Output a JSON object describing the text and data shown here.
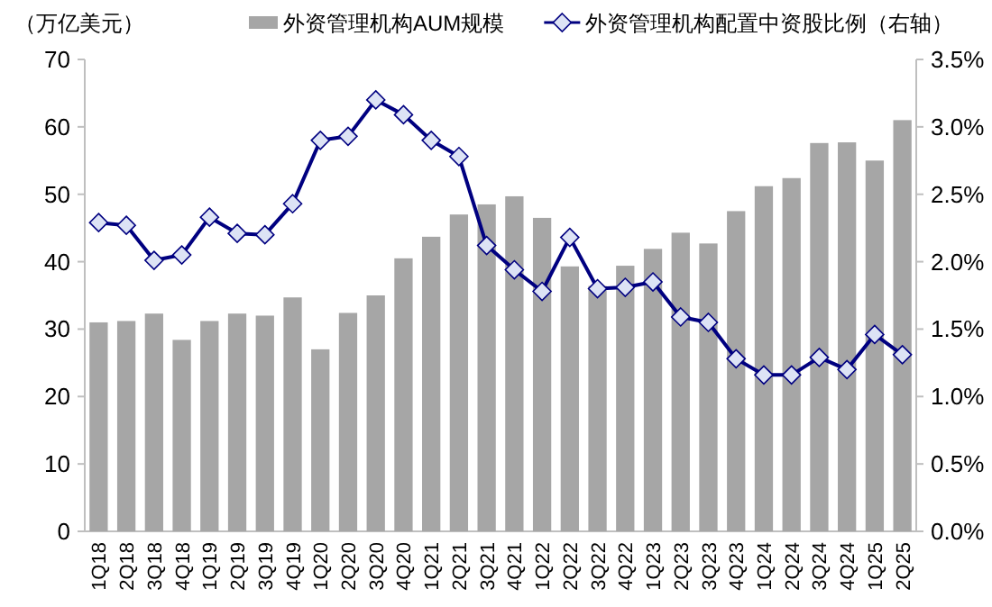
{
  "chart_data": {
    "type": "bar",
    "ylabel": "（万亿美元）",
    "categories": [
      "1Q18",
      "2Q18",
      "3Q18",
      "4Q18",
      "1Q19",
      "2Q19",
      "3Q19",
      "4Q19",
      "1Q20",
      "2Q20",
      "3Q20",
      "4Q20",
      "1Q21",
      "2Q21",
      "3Q21",
      "4Q21",
      "1Q22",
      "2Q22",
      "3Q22",
      "4Q22",
      "1Q23",
      "2Q23",
      "3Q23",
      "4Q23",
      "1Q24",
      "2Q24",
      "3Q24",
      "4Q24",
      "1Q25",
      "2Q25"
    ],
    "series": [
      {
        "name": "外资管理机构AUM规模",
        "color": "#a6a6a6",
        "values": [
          31.0,
          31.2,
          32.3,
          28.4,
          31.2,
          32.3,
          32.0,
          34.7,
          27.0,
          32.4,
          35.0,
          40.5,
          43.7,
          47.0,
          48.5,
          49.7,
          46.5,
          39.3,
          36.4,
          39.4,
          41.9,
          44.3,
          42.7,
          47.5,
          51.2,
          52.4,
          57.6,
          57.7,
          55.0,
          61.0
        ]
      },
      {
        "name": "外资管理机构配置中资股比例（右轴）",
        "type": "line",
        "axis": "y2",
        "color": "#000080",
        "values": [
          2.29,
          2.27,
          2.01,
          2.05,
          2.33,
          2.21,
          2.2,
          2.43,
          2.9,
          2.93,
          3.2,
          3.09,
          2.9,
          2.78,
          2.12,
          1.94,
          1.78,
          2.18,
          1.8,
          1.81,
          1.85,
          1.59,
          1.55,
          1.28,
          1.16,
          1.16,
          1.29,
          1.2,
          1.46,
          1.31
        ]
      }
    ],
    "ylim": [
      0,
      70
    ],
    "yticks": [
      0,
      10,
      20,
      30,
      40,
      50,
      60,
      70
    ],
    "y2lim": [
      0,
      3.5
    ],
    "y2ticks": [
      {
        "value": 0,
        "label": "0.0%"
      },
      {
        "value": 0.5,
        "label": "0.5%"
      },
      {
        "value": 1,
        "label": "1.0%"
      },
      {
        "value": 1.5,
        "label": "1.5%"
      },
      {
        "value": 2,
        "label": "2.0%"
      },
      {
        "value": 2.5,
        "label": "2.5%"
      },
      {
        "value": 3,
        "label": "3.0%"
      },
      {
        "value": 3.5,
        "label": "3.5%"
      }
    ],
    "marker": "diamond",
    "legend": "top"
  }
}
